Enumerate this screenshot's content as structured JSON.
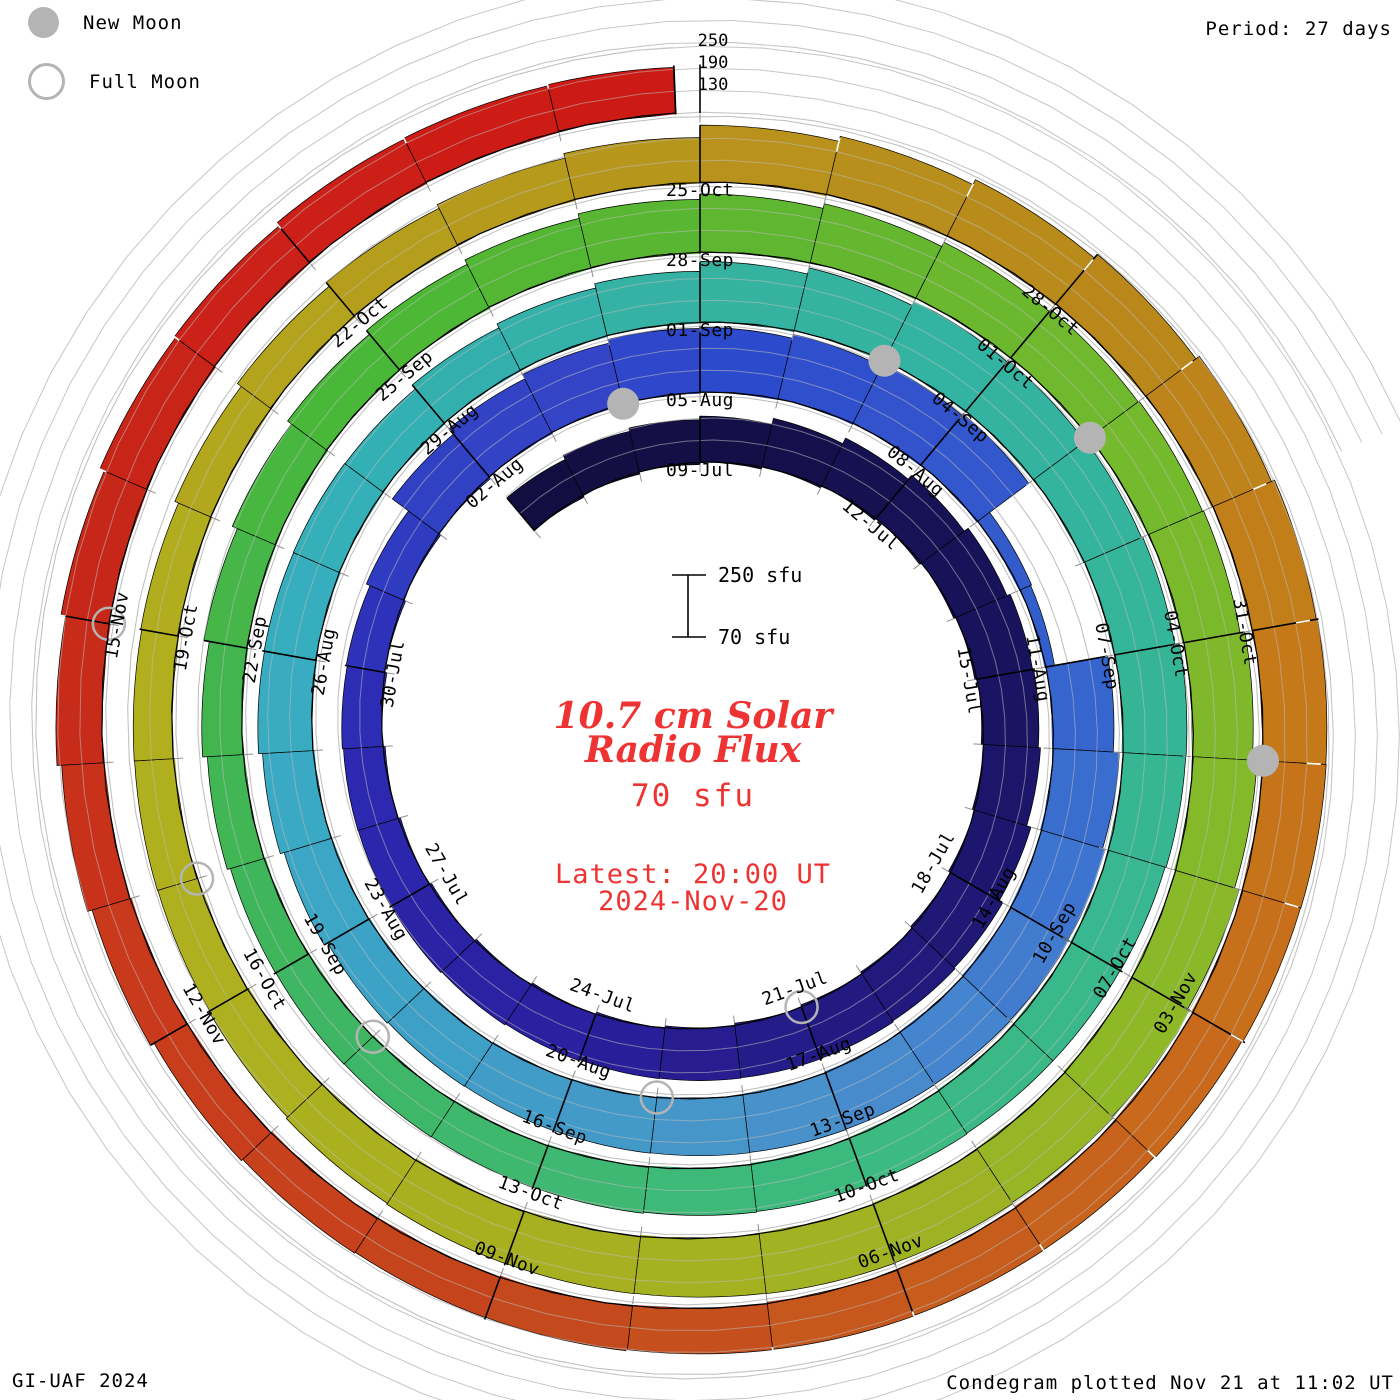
{
  "legend": {
    "new_moon": "New Moon",
    "full_moon": "Full Moon"
  },
  "header": {
    "period": "Period: 27 days"
  },
  "footer": {
    "left": "GI-UAF 2024",
    "right": "Condegram plotted Nov 21 at 11:02 UT"
  },
  "center": {
    "title_line1": "10.7 cm Solar",
    "title_line2": "Radio Flux",
    "unit": "70 sfu",
    "latest_line1": "Latest: 20:00 UT",
    "latest_line2": "2024-Nov-20"
  },
  "colors": {
    "accent_red": "#ee3333",
    "moon_gray": "#b4b4b4",
    "grid_gray": "#c6c6c6",
    "tick_gray": "#8f8f8f"
  },
  "chart_data": {
    "type": "spiral_bar",
    "title": "10.7 cm Solar Radio Flux Condegram",
    "start_date": "2024-07-06",
    "end_date": "2024-11-20",
    "latest_time_ut": "20:00",
    "period_days": 27,
    "start_angle_deg": 320,
    "baseline_sfu": 70,
    "max_sfu": 250,
    "gridline_sfu": [
      130,
      190,
      250
    ],
    "scale_bar": {
      "top_label": "250 sfu",
      "bottom_label": "70 sfu"
    },
    "radial_axis_labels": [
      "250",
      "190",
      "130"
    ],
    "flux_sfu": [
      185,
      190,
      192,
      195,
      205,
      215,
      222,
      228,
      230,
      226,
      225,
      230,
      234,
      230,
      226,
      220,
      214,
      208,
      204,
      200,
      196,
      190,
      184,
      180,
      176,
      180,
      228,
      240,
      246,
      250,
      246,
      250,
      252,
      250,
      110,
      100,
      240,
      250,
      255,
      252,
      246,
      240,
      234,
      228,
      222,
      216,
      210,
      206,
      210,
      214,
      218,
      212,
      206,
      198,
      205,
      210,
      215,
      235,
      245,
      252,
      250,
      246,
      242,
      248,
      240,
      230,
      222,
      215,
      210,
      205,
      200,
      196,
      190,
      184,
      178,
      172,
      174,
      180,
      188,
      196,
      202,
      208,
      214,
      220,
      228,
      234,
      240,
      240,
      236,
      232,
      238,
      244,
      250,
      253,
      250,
      246,
      240,
      232,
      226,
      220,
      210,
      198,
      188,
      182,
      176,
      172,
      176,
      182,
      188,
      192,
      198,
      225,
      232,
      240,
      246,
      250,
      252,
      248,
      242,
      234,
      224,
      214,
      208,
      202,
      196,
      192,
      186,
      182,
      180,
      184,
      190,
      196,
      202,
      208,
      205,
      208,
      204,
      200
    ],
    "last_day_fraction": 0.83,
    "date_labels": [
      {
        "day": 3,
        "label": "09-Jul"
      },
      {
        "day": 6,
        "label": "12-Jul"
      },
      {
        "day": 9,
        "label": "15-Jul"
      },
      {
        "day": 12,
        "label": "18-Jul"
      },
      {
        "day": 15,
        "label": "21-Jul"
      },
      {
        "day": 18,
        "label": "24-Jul"
      },
      {
        "day": 21,
        "label": "27-Jul"
      },
      {
        "day": 24,
        "label": "30-Jul"
      },
      {
        "day": 27,
        "label": "02-Aug"
      },
      {
        "day": 30,
        "label": "05-Aug"
      },
      {
        "day": 33,
        "label": "08-Aug"
      },
      {
        "day": 36,
        "label": "11-Aug"
      },
      {
        "day": 39,
        "label": "14-Aug"
      },
      {
        "day": 42,
        "label": "17-Aug"
      },
      {
        "day": 45,
        "label": "20-Aug"
      },
      {
        "day": 48,
        "label": "23-Aug"
      },
      {
        "day": 51,
        "label": "26-Aug"
      },
      {
        "day": 54,
        "label": "29-Aug"
      },
      {
        "day": 57,
        "label": "01-Sep"
      },
      {
        "day": 60,
        "label": "04-Sep"
      },
      {
        "day": 63,
        "label": "07-Sep"
      },
      {
        "day": 66,
        "label": "10-Sep"
      },
      {
        "day": 69,
        "label": "13-Sep"
      },
      {
        "day": 72,
        "label": "16-Sep"
      },
      {
        "day": 75,
        "label": "19-Sep"
      },
      {
        "day": 78,
        "label": "22-Sep"
      },
      {
        "day": 81,
        "label": "25-Sep"
      },
      {
        "day": 84,
        "label": "28-Sep"
      },
      {
        "day": 87,
        "label": "01-Oct"
      },
      {
        "day": 90,
        "label": "04-Oct"
      },
      {
        "day": 93,
        "label": "07-Oct"
      },
      {
        "day": 96,
        "label": "10-Oct"
      },
      {
        "day": 99,
        "label": "13-Oct"
      },
      {
        "day": 102,
        "label": "16-Oct"
      },
      {
        "day": 105,
        "label": "19-Oct"
      },
      {
        "day": 108,
        "label": "22-Oct"
      },
      {
        "day": 111,
        "label": "25-Oct"
      },
      {
        "day": 114,
        "label": "28-Oct"
      },
      {
        "day": 117,
        "label": "31-Oct"
      },
      {
        "day": 120,
        "label": "03-Nov"
      },
      {
        "day": 123,
        "label": "06-Nov"
      },
      {
        "day": 126,
        "label": "09-Nov"
      },
      {
        "day": 129,
        "label": "12-Nov"
      },
      {
        "day": 132,
        "label": "15-Nov"
      }
    ],
    "moons": {
      "new_moon_days": [
        29,
        59,
        88,
        118
      ],
      "full_moon_days": [
        15,
        44,
        74,
        103,
        132
      ]
    },
    "color_stops": [
      [
        0,
        "#120e40"
      ],
      [
        3,
        "#140f45"
      ],
      [
        9,
        "#191360"
      ],
      [
        15,
        "#231b84"
      ],
      [
        18,
        "#2a1f9e"
      ],
      [
        21,
        "#2b24a8"
      ],
      [
        24,
        "#2d2db8"
      ],
      [
        26,
        "#3040c2"
      ],
      [
        29,
        "#3345c8"
      ],
      [
        30,
        "#2b49cc"
      ],
      [
        33,
        "#3355cc"
      ],
      [
        36,
        "#3361cc"
      ],
      [
        39,
        "#3f78d0"
      ],
      [
        42,
        "#4a8fcc"
      ],
      [
        45,
        "#429cc8"
      ],
      [
        48,
        "#3ca4c6"
      ],
      [
        51,
        "#38adc0"
      ],
      [
        54,
        "#32b0b0"
      ],
      [
        57,
        "#35b2a0"
      ],
      [
        60,
        "#33b3a2"
      ],
      [
        63,
        "#35b598"
      ],
      [
        66,
        "#38b78e"
      ],
      [
        69,
        "#3cba7f"
      ],
      [
        72,
        "#3eb870"
      ],
      [
        75,
        "#3eb660"
      ],
      [
        78,
        "#44b54a"
      ],
      [
        81,
        "#4ab836"
      ],
      [
        84,
        "#5cb532"
      ],
      [
        87,
        "#6eb82e"
      ],
      [
        90,
        "#7cb92c"
      ],
      [
        93,
        "#8cb928"
      ],
      [
        96,
        "#a0b222"
      ],
      [
        99,
        "#a8b01f"
      ],
      [
        102,
        "#aeb01f"
      ],
      [
        105,
        "#b2af1e"
      ],
      [
        108,
        "#b4a01c"
      ],
      [
        111,
        "#b8941c"
      ],
      [
        114,
        "#b8891b"
      ],
      [
        117,
        "#c47c18"
      ],
      [
        120,
        "#c86c1a"
      ],
      [
        123,
        "#c65a1d"
      ],
      [
        126,
        "#c4451c"
      ],
      [
        129,
        "#c93c1c"
      ],
      [
        132,
        "#c62818"
      ],
      [
        135,
        "#cc2018"
      ],
      [
        137,
        "#cc1a14"
      ]
    ]
  }
}
